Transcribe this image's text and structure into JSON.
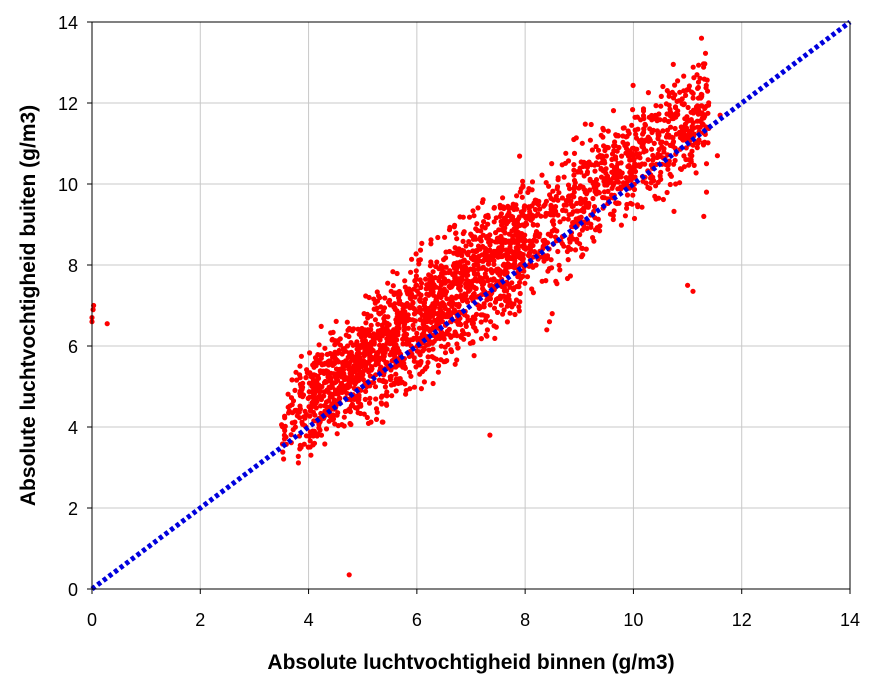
{
  "chart_data": {
    "type": "scatter",
    "xlabel": "Absolute luchtvochtigheid binnen (g/m3)",
    "ylabel": "Absolute luchtvochtigheid buiten (g/m3)",
    "xlim": [
      0,
      14
    ],
    "ylim": [
      0,
      14
    ],
    "xticks": [
      "0",
      "2",
      "4",
      "6",
      "8",
      "10",
      "12",
      "14"
    ],
    "yticks": [
      "0",
      "2",
      "4",
      "6",
      "8",
      "10",
      "12",
      "14"
    ],
    "grid": true,
    "legend": "none",
    "series": [
      {
        "color": "#ff0000",
        "marker": "circle",
        "cloud": {
          "x_range": [
            3.5,
            11.4
          ],
          "trend_at_4": 4.6,
          "trend_at_10": 10.6,
          "spread": 1.25,
          "approx_point_count": 9000
        },
        "outliers": [
          [
            0.0,
            6.7
          ],
          [
            0.02,
            6.9
          ],
          [
            0.03,
            7.0
          ],
          [
            0.0,
            6.6
          ],
          [
            0.28,
            6.55
          ],
          [
            4.75,
            0.35
          ],
          [
            7.35,
            3.8
          ],
          [
            11.1,
            7.35
          ],
          [
            11.0,
            7.5
          ],
          [
            11.3,
            9.2
          ],
          [
            11.35,
            9.8
          ],
          [
            11.55,
            10.7
          ],
          [
            11.6,
            11.7
          ],
          [
            8.4,
            6.4
          ],
          [
            8.45,
            6.6
          ],
          [
            8.5,
            6.8
          ]
        ]
      },
      {
        "color": "#0000dd",
        "style": "dotted",
        "x": [
          0,
          14
        ],
        "y": [
          0,
          14
        ]
      }
    ]
  }
}
